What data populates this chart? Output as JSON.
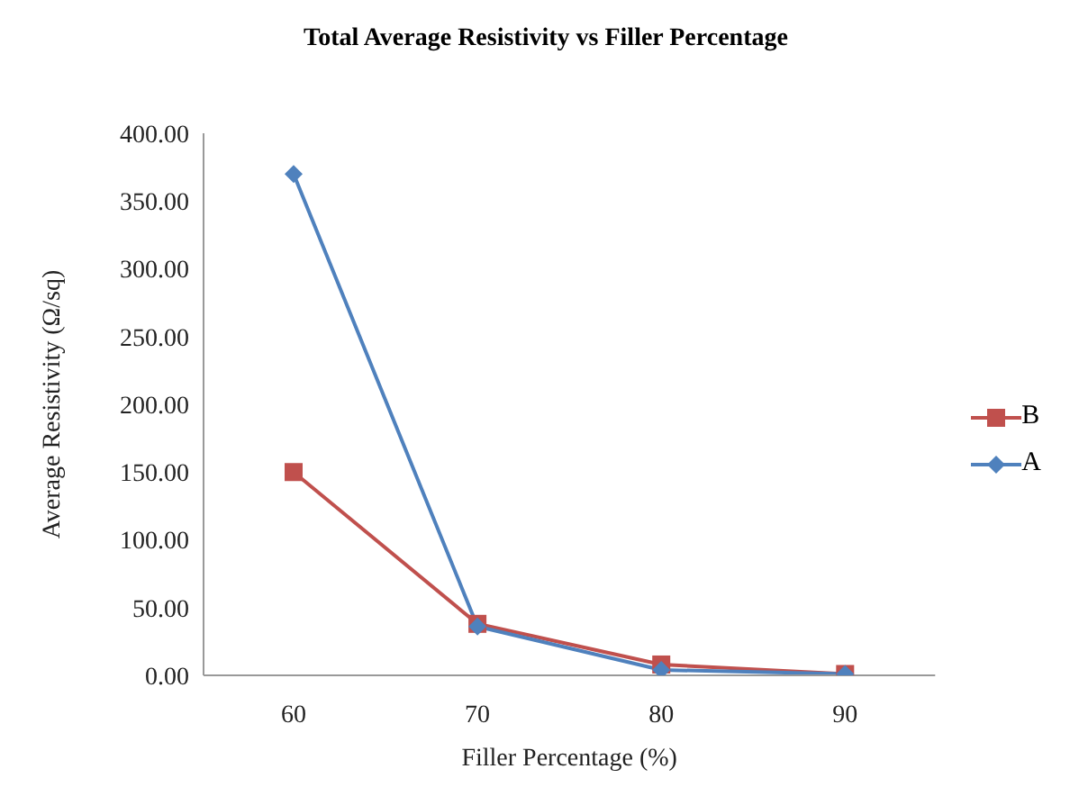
{
  "chart_data": {
    "type": "line",
    "title": "Total Average Resistivity vs Filler Percentage",
    "xlabel": "Filler  Percentage (%)",
    "ylabel": "Average Resistivity   (Ω/sq)",
    "categories": [
      "60",
      "70",
      "80",
      "90"
    ],
    "series": [
      {
        "name": "B",
        "color": "#c0504d",
        "marker": "square",
        "values": [
          150,
          38,
          8,
          1
        ]
      },
      {
        "name": "A",
        "color": "#4f81bd",
        "marker": "diamond",
        "values": [
          370,
          36,
          4,
          1
        ]
      }
    ],
    "ylim": [
      0,
      400
    ],
    "yticks": [
      {
        "value": 0,
        "label": "0.00"
      },
      {
        "value": 50,
        "label": "50.00"
      },
      {
        "value": 100,
        "label": "100.00"
      },
      {
        "value": 150,
        "label": "150.00"
      },
      {
        "value": 200,
        "label": "200.00"
      },
      {
        "value": 250,
        "label": "250.00"
      },
      {
        "value": 300,
        "label": "300.00"
      },
      {
        "value": 350,
        "label": "350.00"
      },
      {
        "value": 400,
        "label": "400.00"
      }
    ],
    "grid": false,
    "legend": "right",
    "line_style": "solid"
  }
}
